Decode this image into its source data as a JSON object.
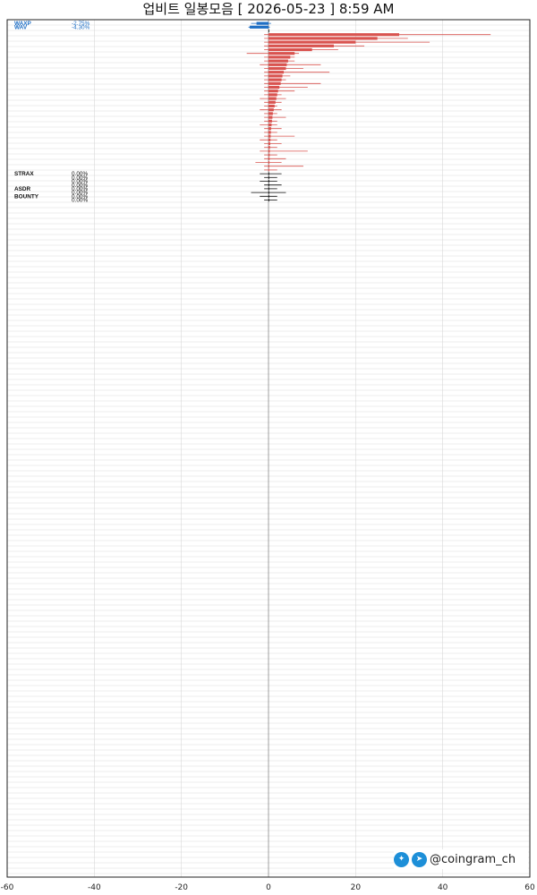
{
  "title": "업비트 일봉모음 [ 2026-05-23 ]  8:59 AM",
  "watermark": {
    "handle": "@coingram_ch",
    "icons": [
      "twitter-icon",
      "telegram-icon"
    ]
  },
  "colors": {
    "up": "#d9534f",
    "down": "#1f6fc5",
    "flat": "#111111",
    "grid": "#d9d9d9",
    "zero": "#888888"
  },
  "chart_data": {
    "type": "bar",
    "orientation": "horizontal",
    "xlim": [
      -60,
      60
    ],
    "xticks": [
      -60,
      -40,
      -20,
      0,
      20,
      40,
      60
    ],
    "grid": true,
    "rows": [
      {
        "label": "WAXP",
        "pct": "-2.75%",
        "open": 0,
        "close": -2.75,
        "low": -4.0,
        "high": 0.6
      },
      {
        "label": "WAV",
        "pct": "-4.30%",
        "open": 0,
        "close": -4.3,
        "low": -4.6,
        "high": 0.3
      },
      {
        "label": "",
        "pct": "",
        "open": 0,
        "close": 0,
        "low": 0,
        "high": 0
      },
      {
        "label": "",
        "pct": "",
        "open": 0,
        "close": 30,
        "low": -1,
        "high": 51
      },
      {
        "label": "",
        "pct": "",
        "open": 0,
        "close": 25,
        "low": -1,
        "high": 32
      },
      {
        "label": "",
        "pct": "",
        "open": 0,
        "close": 20,
        "low": -1,
        "high": 37
      },
      {
        "label": "",
        "pct": "",
        "open": 0,
        "close": 15,
        "low": -1,
        "high": 22
      },
      {
        "label": "",
        "pct": "",
        "open": 0,
        "close": 10,
        "low": -1,
        "high": 16
      },
      {
        "label": "",
        "pct": "",
        "open": 0,
        "close": 6,
        "low": -5,
        "high": 7
      },
      {
        "label": "",
        "pct": "",
        "open": 0,
        "close": 5,
        "low": -1,
        "high": 6
      },
      {
        "label": "",
        "pct": "",
        "open": 0,
        "close": 4.5,
        "low": -1,
        "high": 6
      },
      {
        "label": "",
        "pct": "",
        "open": 0,
        "close": 4.2,
        "low": -2,
        "high": 12
      },
      {
        "label": "",
        "pct": "",
        "open": 0,
        "close": 4,
        "low": -1,
        "high": 8
      },
      {
        "label": "",
        "pct": "",
        "open": 0,
        "close": 3.5,
        "low": -1,
        "high": 14
      },
      {
        "label": "",
        "pct": "",
        "open": 0,
        "close": 3.2,
        "low": -1,
        "high": 5
      },
      {
        "label": "",
        "pct": "",
        "open": 0,
        "close": 3,
        "low": -1,
        "high": 4
      },
      {
        "label": "",
        "pct": "",
        "open": 0,
        "close": 2.8,
        "low": -1,
        "high": 12
      },
      {
        "label": "",
        "pct": "",
        "open": 0,
        "close": 2.5,
        "low": -1,
        "high": 9
      },
      {
        "label": "",
        "pct": "",
        "open": 0,
        "close": 2.2,
        "low": -1,
        "high": 6
      },
      {
        "label": "",
        "pct": "",
        "open": 0,
        "close": 2,
        "low": -1,
        "high": 3
      },
      {
        "label": "",
        "pct": "",
        "open": 0,
        "close": 1.8,
        "low": -2,
        "high": 4
      },
      {
        "label": "",
        "pct": "",
        "open": 0,
        "close": 1.6,
        "low": -1,
        "high": 3
      },
      {
        "label": "",
        "pct": "",
        "open": 0,
        "close": 1.4,
        "low": -1,
        "high": 2
      },
      {
        "label": "",
        "pct": "",
        "open": 0,
        "close": 1.2,
        "low": -2,
        "high": 3
      },
      {
        "label": "",
        "pct": "",
        "open": 0,
        "close": 1,
        "low": -1,
        "high": 2
      },
      {
        "label": "",
        "pct": "",
        "open": 0,
        "close": 0.9,
        "low": -1,
        "high": 4
      },
      {
        "label": "",
        "pct": "",
        "open": 0,
        "close": 0.8,
        "low": -1,
        "high": 2
      },
      {
        "label": "",
        "pct": "",
        "open": 0,
        "close": 0.7,
        "low": -2,
        "high": 2
      },
      {
        "label": "",
        "pct": "",
        "open": 0,
        "close": 0.6,
        "low": -1,
        "high": 3
      },
      {
        "label": "",
        "pct": "",
        "open": 0,
        "close": 0.55,
        "low": -1,
        "high": 2
      },
      {
        "label": "",
        "pct": "",
        "open": 0,
        "close": 0.5,
        "low": -1,
        "high": 6
      },
      {
        "label": "",
        "pct": "",
        "open": 0,
        "close": 0.45,
        "low": -2,
        "high": 2
      },
      {
        "label": "",
        "pct": "",
        "open": 0,
        "close": 0.4,
        "low": -1,
        "high": 3
      },
      {
        "label": "",
        "pct": "",
        "open": 0,
        "close": 0.35,
        "low": -1,
        "high": 2
      },
      {
        "label": "",
        "pct": "",
        "open": 0,
        "close": 0.3,
        "low": -2,
        "high": 9
      },
      {
        "label": "",
        "pct": "",
        "open": 0,
        "close": 0.28,
        "low": -1,
        "high": 2
      },
      {
        "label": "",
        "pct": "",
        "open": 0,
        "close": 0.25,
        "low": -1,
        "high": 4
      },
      {
        "label": "",
        "pct": "",
        "open": 0,
        "close": 0.22,
        "low": -3,
        "high": 3
      },
      {
        "label": "",
        "pct": "",
        "open": 0,
        "close": 0.2,
        "low": -1,
        "high": 8
      },
      {
        "label": "",
        "pct": "",
        "open": 0,
        "close": 0.15,
        "low": -1,
        "high": 2
      },
      {
        "label": "STRAX",
        "pct": "0.00%",
        "open": 0,
        "close": 0,
        "low": -2,
        "high": 3
      },
      {
        "label": "",
        "pct": "0.00%",
        "open": 0,
        "close": 0,
        "low": -1,
        "high": 2
      },
      {
        "label": "",
        "pct": "0.00%",
        "open": 0,
        "close": 0,
        "low": -2,
        "high": 2
      },
      {
        "label": "",
        "pct": "0.00%",
        "open": 0,
        "close": 0,
        "low": -1,
        "high": 3
      },
      {
        "label": "ASDR",
        "pct": "0.00%",
        "open": 0,
        "close": 0,
        "low": -1,
        "high": 2
      },
      {
        "label": "",
        "pct": "0.00%",
        "open": 0,
        "close": 0,
        "low": -4,
        "high": 4
      },
      {
        "label": "BOUNTY",
        "pct": "0.00%",
        "open": 0,
        "close": 0,
        "low": -2,
        "high": 2
      },
      {
        "label": "",
        "pct": "0.00%",
        "open": 0,
        "close": 0,
        "low": -1,
        "high": 2
      }
    ]
  }
}
